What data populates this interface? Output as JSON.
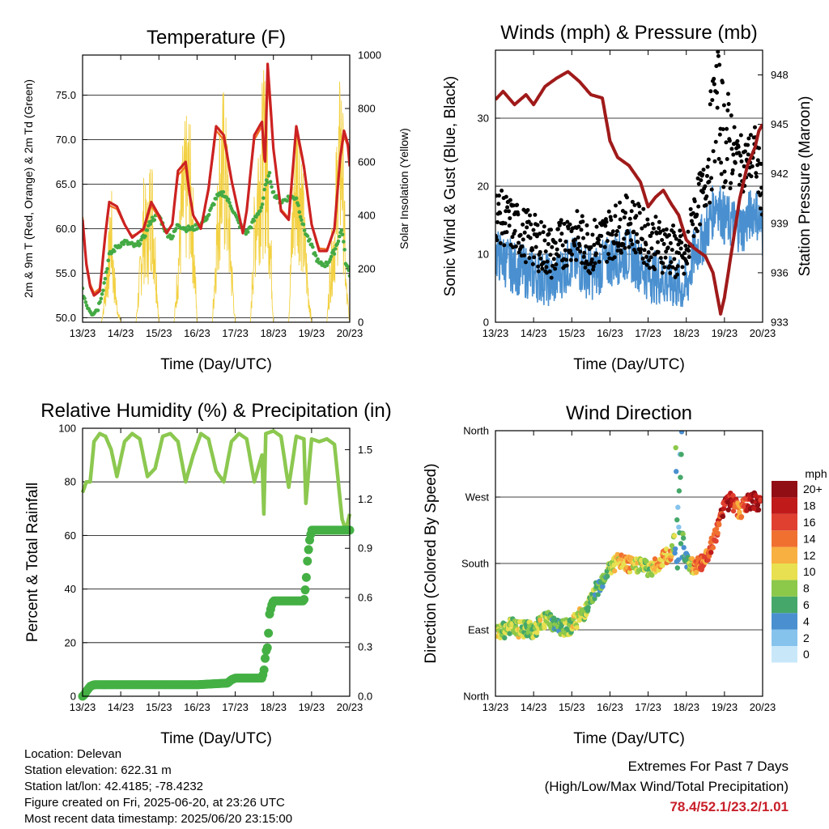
{
  "chart_data": [
    {
      "type": "line",
      "title": "Temperature (F)",
      "xlabel": "Time (Day/UTC)",
      "ylabel": "2m & 9m T (Red, Orange) & 2m Td (Green)",
      "ylabel_right": "Solar Insolation (Yellow)",
      "ylim": [
        49.5,
        79.5
      ],
      "ylim_right": [
        0,
        1000
      ],
      "xlim": [
        13,
        20
      ],
      "x_ticks": [
        "13/23",
        "14/23",
        "15/23",
        "16/23",
        "17/23",
        "18/23",
        "19/23",
        "20/23"
      ],
      "y_ticks": [
        "50.0",
        "55.0",
        "60.0",
        "65.0",
        "70.0",
        "75.0"
      ],
      "y_ticks_right": [
        "0",
        "200",
        "400",
        "600",
        "800",
        "1000"
      ],
      "grid": true,
      "series": [
        {
          "name": "2m T",
          "color": "#cc2222",
          "x": [
            13.0,
            13.1,
            13.2,
            13.3,
            13.45,
            13.6,
            13.7,
            13.9,
            14.1,
            14.3,
            14.6,
            14.8,
            15.0,
            15.2,
            15.35,
            15.5,
            15.7,
            15.8,
            15.9,
            16.1,
            16.3,
            16.5,
            16.7,
            16.9,
            17.1,
            17.2,
            17.3,
            17.5,
            17.7,
            17.78,
            17.85,
            18.0,
            18.2,
            18.4,
            18.6,
            18.8,
            19.0,
            19.2,
            19.4,
            19.6,
            19.75,
            19.85,
            19.95,
            20.0
          ],
          "values": [
            61.0,
            56.0,
            53.5,
            52.5,
            53.0,
            59.5,
            63.0,
            62.5,
            60.5,
            59.0,
            60.0,
            63.0,
            61.5,
            59.5,
            60.5,
            66.5,
            67.5,
            64.0,
            61.5,
            60.0,
            64.5,
            71.5,
            70.5,
            65.5,
            61.5,
            59.5,
            62.0,
            70.5,
            72.0,
            67.0,
            78.5,
            69.0,
            62.0,
            61.0,
            71.5,
            67.0,
            60.5,
            57.5,
            57.5,
            60.0,
            68.0,
            71.0,
            69.5,
            67.0
          ]
        },
        {
          "name": "9m T",
          "color": "#f07020",
          "x": [
            13.0,
            13.1,
            13.2,
            13.3,
            13.45,
            13.6,
            13.7,
            13.9,
            14.1,
            14.3,
            14.6,
            14.8,
            15.0,
            15.2,
            15.35,
            15.5,
            15.7,
            15.8,
            15.9,
            16.1,
            16.3,
            16.5,
            16.7,
            16.9,
            17.1,
            17.2,
            17.3,
            17.5,
            17.7,
            17.78,
            17.85,
            18.0,
            18.2,
            18.4,
            18.6,
            18.8,
            19.0,
            19.2,
            19.4,
            19.6,
            19.75,
            19.85,
            19.95,
            20.0
          ],
          "values": [
            61.3,
            56.3,
            53.8,
            52.8,
            53.3,
            59.3,
            62.6,
            62.2,
            60.4,
            59.2,
            59.8,
            62.6,
            61.2,
            59.6,
            60.4,
            66.0,
            67.0,
            63.8,
            61.5,
            60.2,
            64.2,
            71.0,
            70.0,
            65.4,
            61.6,
            59.7,
            62.0,
            70.0,
            71.5,
            67.0,
            77.0,
            68.8,
            62.2,
            61.2,
            71.0,
            66.8,
            60.6,
            57.8,
            57.7,
            60.0,
            67.6,
            70.5,
            69.2,
            67.0
          ]
        },
        {
          "name": "2m Td",
          "color": "#44aa44",
          "x": [
            13.0,
            13.1,
            13.25,
            13.4,
            13.55,
            13.7,
            13.9,
            14.1,
            14.4,
            14.6,
            14.8,
            15.0,
            15.2,
            15.35,
            15.5,
            15.7,
            15.9,
            16.1,
            16.3,
            16.5,
            16.7,
            16.9,
            17.1,
            17.3,
            17.5,
            17.7,
            17.8,
            17.9,
            18.0,
            18.2,
            18.4,
            18.6,
            18.8,
            19.0,
            19.2,
            19.4,
            19.6,
            19.8,
            19.9,
            20.0
          ],
          "values": [
            53.0,
            51.5,
            50.5,
            51.0,
            53.5,
            57.0,
            58.0,
            58.5,
            58.0,
            59.0,
            61.0,
            61.5,
            59.5,
            59.0,
            60.5,
            60.0,
            60.0,
            60.5,
            61.5,
            63.5,
            64.0,
            62.5,
            60.5,
            59.5,
            61.0,
            62.5,
            65.0,
            66.0,
            64.0,
            63.0,
            63.5,
            63.5,
            60.0,
            58.0,
            56.0,
            56.0,
            57.5,
            60.0,
            56.0,
            55.0
          ]
        },
        {
          "name": "Solar Insolation",
          "color": "#f2d040",
          "axis": "right",
          "x": [
            13.0,
            13.5,
            13.6,
            13.7,
            13.75,
            13.8,
            13.9,
            14.0,
            14.4,
            14.5,
            14.6,
            14.7,
            14.8,
            14.9,
            15.0,
            15.4,
            15.5,
            15.6,
            15.7,
            15.8,
            15.9,
            16.0,
            16.4,
            16.5,
            16.6,
            16.7,
            16.8,
            16.9,
            17.0,
            17.4,
            17.5,
            17.6,
            17.7,
            17.8,
            17.9,
            18.0,
            18.4,
            18.5,
            18.6,
            18.7,
            18.8,
            18.9,
            19.0,
            19.4,
            19.5,
            19.6,
            19.7,
            19.8,
            19.85,
            19.9,
            20.0
          ],
          "values": [
            0,
            0,
            180,
            380,
            560,
            300,
            90,
            0,
            0,
            250,
            560,
            480,
            720,
            400,
            0,
            0,
            300,
            650,
            780,
            820,
            500,
            0,
            0,
            420,
            850,
            900,
            700,
            300,
            0,
            0,
            500,
            820,
            920,
            980,
            600,
            0,
            0,
            560,
            880,
            840,
            500,
            200,
            0,
            0,
            300,
            500,
            880,
            1000,
            600,
            200,
            0
          ]
        }
      ]
    },
    {
      "type": "scatter",
      "title": "Winds (mph) & Pressure (mb)",
      "xlabel": "Time (Day/UTC)",
      "ylabel": "Sonic Wind & Gust (Blue, Black)",
      "ylabel_right": "Station Pressure (Maroon)",
      "ylim": [
        0,
        40
      ],
      "ylim_right": [
        933,
        949.5
      ],
      "xlim": [
        13,
        20
      ],
      "x_ticks": [
        "13/23",
        "14/23",
        "15/23",
        "16/23",
        "17/23",
        "18/23",
        "19/23",
        "20/23"
      ],
      "y_ticks": [
        "0",
        "10",
        "20",
        "30"
      ],
      "y_ticks_right": [
        "933",
        "936",
        "939",
        "942",
        "945",
        "948"
      ],
      "grid": true,
      "series": [
        {
          "name": "Sonic Wind",
          "color": "#4a90d0",
          "x": [
            13.0,
            13.5,
            14.0,
            14.5,
            15.0,
            15.5,
            16.0,
            16.5,
            17.0,
            17.5,
            18.0,
            18.2,
            18.5,
            18.8,
            19.0,
            19.5,
            19.8,
            20.0
          ],
          "values": [
            10,
            8,
            7,
            6,
            9,
            7,
            9,
            10,
            7,
            6,
            5,
            10,
            13,
            18,
            15,
            14,
            17,
            13
          ]
        },
        {
          "name": "Gust",
          "color": "#000000",
          "x": [
            13.0,
            13.5,
            14.0,
            14.5,
            15.0,
            15.5,
            16.0,
            16.5,
            17.0,
            17.5,
            18.0,
            18.2,
            18.5,
            18.8,
            19.0,
            19.5,
            19.8,
            20.0
          ],
          "values": [
            16,
            14,
            12,
            10,
            13,
            11,
            13,
            15,
            12,
            11,
            9,
            16,
            20,
            33,
            27,
            23,
            25,
            19
          ]
        },
        {
          "name": "Station Pressure",
          "color": "#a01a1a",
          "axis": "right",
          "x": [
            13.0,
            13.2,
            13.5,
            13.8,
            14.0,
            14.3,
            14.6,
            14.9,
            15.2,
            15.5,
            15.8,
            16.0,
            16.2,
            16.5,
            16.8,
            17.0,
            17.2,
            17.4,
            17.6,
            17.8,
            18.0,
            18.2,
            18.5,
            18.7,
            18.9,
            19.0,
            19.2,
            19.4,
            19.6,
            19.8,
            19.9,
            20.0
          ],
          "values": [
            946.5,
            947.0,
            946.2,
            946.8,
            946.2,
            947.3,
            947.8,
            948.2,
            947.6,
            946.8,
            946.6,
            944.0,
            943.0,
            942.5,
            941.5,
            940.0,
            940.6,
            941.0,
            940.2,
            939.5,
            938.0,
            937.5,
            937.0,
            936.0,
            933.5,
            934.5,
            937.5,
            940.5,
            942.5,
            943.6,
            944.6,
            945.0
          ]
        }
      ]
    },
    {
      "type": "line",
      "title": "Relative Humidity (%) & Precipitation (in)",
      "xlabel": "Time (Day/UTC)",
      "ylabel": "Percent & Total Rainfall",
      "ylim": [
        0,
        100
      ],
      "ylim_right": [
        0,
        1.63
      ],
      "xlim": [
        13,
        20
      ],
      "x_ticks": [
        "13/23",
        "14/23",
        "15/23",
        "16/23",
        "17/23",
        "18/23",
        "19/23",
        "20/23"
      ],
      "y_ticks": [
        "0",
        "20",
        "40",
        "60",
        "80",
        "100"
      ],
      "y_ticks_right": [
        "0.0",
        "0.3",
        "0.6",
        "0.9",
        "1.2",
        "1.5"
      ],
      "grid": true,
      "series": [
        {
          "name": "Relative Humidity",
          "color": "#8cc850",
          "x": [
            13.0,
            13.1,
            13.2,
            13.3,
            13.45,
            13.6,
            13.75,
            13.9,
            14.1,
            14.3,
            14.5,
            14.7,
            14.9,
            15.1,
            15.3,
            15.5,
            15.7,
            15.9,
            16.1,
            16.3,
            16.5,
            16.7,
            16.9,
            17.1,
            17.3,
            17.5,
            17.7,
            17.75,
            17.8,
            18.0,
            18.2,
            18.4,
            18.6,
            18.8,
            18.85,
            19.0,
            19.2,
            19.4,
            19.6,
            19.8,
            19.9,
            20.0
          ],
          "values": [
            76,
            80,
            80,
            95,
            98,
            97,
            92,
            82,
            95,
            98,
            96,
            82,
            85,
            97,
            98,
            95,
            80,
            90,
            98,
            96,
            84,
            80,
            95,
            98,
            96,
            80,
            90,
            68,
            98,
            99,
            97,
            78,
            97,
            96,
            72,
            96,
            95,
            96,
            94,
            66,
            62,
            68
          ]
        },
        {
          "name": "Total Precipitation",
          "color": "#44b044",
          "axis": "right",
          "x": [
            13.0,
            13.05,
            13.1,
            13.2,
            13.3,
            14.0,
            15.0,
            16.0,
            16.8,
            16.9,
            17.0,
            17.7,
            17.75,
            17.8,
            17.85,
            17.9,
            17.95,
            18.0,
            18.8,
            18.85,
            18.9,
            18.95,
            19.0,
            20.0
          ],
          "values": [
            0.0,
            0.01,
            0.03,
            0.06,
            0.07,
            0.07,
            0.07,
            0.07,
            0.08,
            0.1,
            0.11,
            0.11,
            0.15,
            0.27,
            0.3,
            0.5,
            0.55,
            0.58,
            0.58,
            0.68,
            0.85,
            0.95,
            1.01,
            1.01
          ]
        }
      ]
    },
    {
      "type": "scatter",
      "title": "Wind Direction",
      "xlabel": "Time (Day/UTC)",
      "ylabel": "Direction (Colored By Speed)",
      "ylim": [
        0,
        360
      ],
      "xlim": [
        13,
        20
      ],
      "x_ticks": [
        "13/23",
        "14/23",
        "15/23",
        "16/23",
        "17/23",
        "18/23",
        "19/23",
        "20/23"
      ],
      "y_ticks": [
        "North",
        "East",
        "South",
        "West",
        "North"
      ],
      "grid": true,
      "legend_title": "mph",
      "legend_labels": [
        "0",
        "2",
        "4",
        "6",
        "8",
        "10",
        "12",
        "14",
        "16",
        "18",
        "20+"
      ],
      "legend_colors": [
        "#c8e8fa",
        "#86c3ec",
        "#4a90d0",
        "#45a86a",
        "#8cc84a",
        "#e8e050",
        "#f8b040",
        "#f07030",
        "#e04030",
        "#c01a1a",
        "#900e14"
      ],
      "series": [
        {
          "name": "Direction",
          "x": [
            13.0,
            13.2,
            13.4,
            13.6,
            13.8,
            14.0,
            14.2,
            14.4,
            14.6,
            14.8,
            15.0,
            15.2,
            15.4,
            15.6,
            15.8,
            16.0,
            16.2,
            16.4,
            16.6,
            16.8,
            17.0,
            17.2,
            17.4,
            17.6,
            17.75,
            17.85,
            17.95,
            18.0,
            18.2,
            18.4,
            18.6,
            18.8,
            19.0,
            19.2,
            19.4,
            19.6,
            19.8,
            20.0
          ],
          "values": [
            82,
            88,
            96,
            90,
            92,
            88,
            100,
            105,
            94,
            92,
            96,
            108,
            118,
            140,
            158,
            175,
            182,
            180,
            176,
            180,
            172,
            176,
            188,
            190,
            240,
            260,
            190,
            185,
            176,
            180,
            196,
            222,
            262,
            265,
            250,
            262,
            265,
            258
          ],
          "speeds": [
            10,
            8,
            9,
            9,
            8,
            7,
            9,
            8,
            6,
            8,
            9,
            10,
            8,
            7,
            6,
            8,
            11,
            12,
            11,
            9,
            8,
            12,
            13,
            11,
            5,
            4,
            6,
            5,
            13,
            14,
            15,
            16,
            18,
            19,
            12,
            18,
            20,
            18
          ]
        }
      ]
    }
  ],
  "info": {
    "location": "Location: Delevan",
    "elevation": "Station elevation: 622.31 m",
    "latlon": "Station lat/lon: 42.4185; -78.4232",
    "created": "Figure created on Fri, 2025-06-20, at 23:26 UTC",
    "recent": "Most recent data timestamp: 2025/06/20 23:15:00"
  },
  "extremes": {
    "title": "Extremes For Past 7 Days",
    "subtitle": "(High/Low/Max Wind/Total Precipitation)",
    "values": "78.4/52.1/23.2/1.01"
  }
}
